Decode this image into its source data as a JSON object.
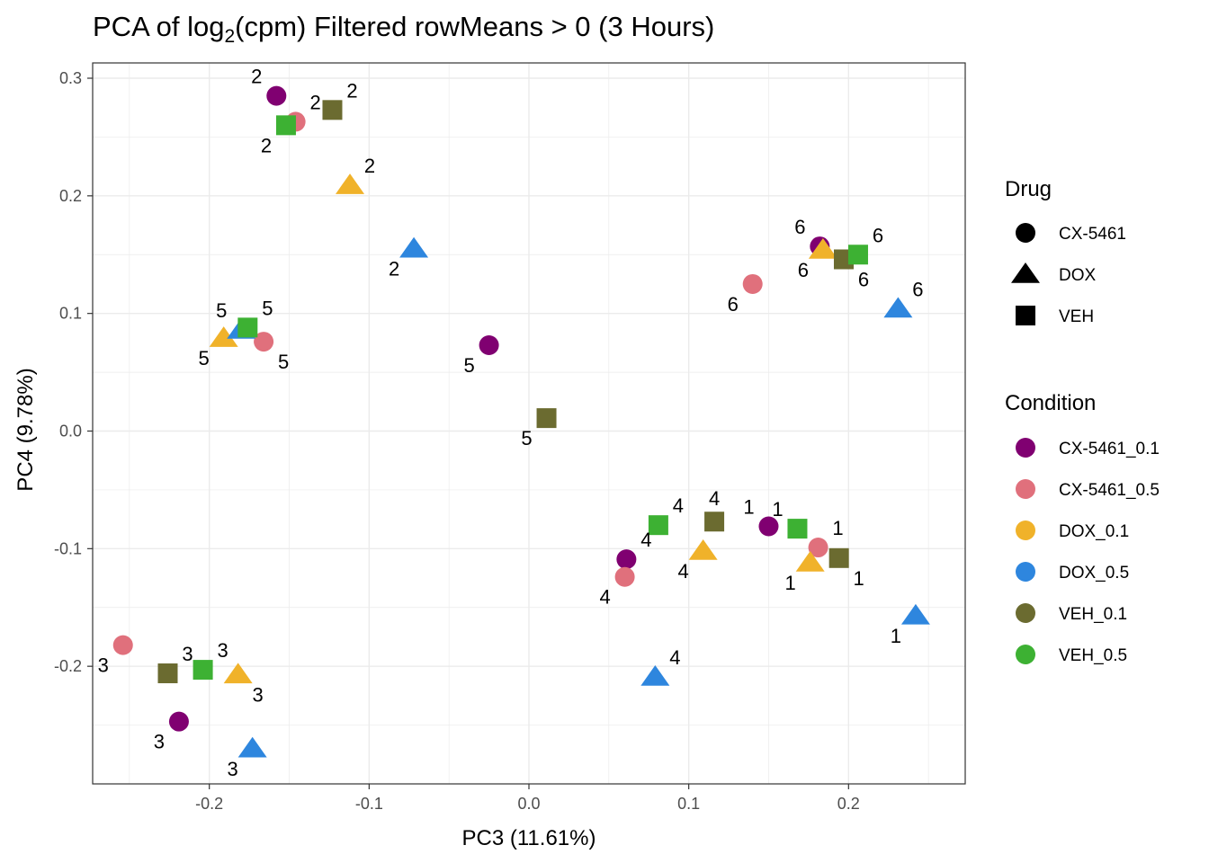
{
  "chart_data": {
    "type": "scatter",
    "title_prefix": "PCA of log",
    "title_sub": "2",
    "title_suffix": "(cpm) Filtered rowMeans > 0 (3 Hours)",
    "xlabel": "PC3 (11.61%)",
    "ylabel": "PC4 (9.78%)",
    "xlim": [
      -0.273,
      0.273
    ],
    "ylim": [
      -0.3,
      0.313
    ],
    "xticks": [
      -0.2,
      -0.1,
      0.0,
      0.1,
      0.2
    ],
    "xtick_labels": [
      "-0.2",
      "-0.1",
      "0.0",
      "0.1",
      "0.2"
    ],
    "yticks": [
      -0.2,
      -0.1,
      0.0,
      0.1,
      0.2,
      0.3
    ],
    "ytick_labels": [
      "-0.2",
      "-0.1",
      "0.0",
      "0.1",
      "0.2",
      "0.3"
    ],
    "grid": true,
    "colors": {
      "CX-5461_0.1": "#800071",
      "CX-5461_0.5": "#E0707C",
      "DOX_0.1": "#F0B22A",
      "DOX_0.5": "#2E86DE",
      "VEH_0.1": "#6B6B30",
      "VEH_0.5": "#3DB133"
    },
    "shapes": {
      "CX-5461": "circle",
      "DOX": "triangle",
      "VEH": "square"
    },
    "legend_drug": {
      "title": "Drug",
      "items": [
        "CX-5461",
        "DOX",
        "VEH"
      ]
    },
    "legend_condition": {
      "title": "Condition",
      "items": [
        "CX-5461_0.1",
        "CX-5461_0.5",
        "DOX_0.1",
        "DOX_0.5",
        "VEH_0.1",
        "VEH_0.5"
      ]
    },
    "points": [
      {
        "x": 0.15,
        "y": -0.081,
        "drug": "CX-5461",
        "condition": "CX-5461_0.1",
        "label": "1",
        "lpos": "tl"
      },
      {
        "x": 0.181,
        "y": -0.099,
        "drug": "CX-5461",
        "condition": "CX-5461_0.5",
        "label": "1",
        "lpos": "tr"
      },
      {
        "x": 0.176,
        "y": -0.112,
        "drug": "DOX",
        "condition": "DOX_0.1",
        "label": "1",
        "lpos": "bl"
      },
      {
        "x": 0.242,
        "y": -0.157,
        "drug": "DOX",
        "condition": "DOX_0.5",
        "label": "1",
        "lpos": "bl"
      },
      {
        "x": 0.194,
        "y": -0.108,
        "drug": "VEH",
        "condition": "VEH_0.1",
        "label": "1",
        "lpos": "br"
      },
      {
        "x": 0.168,
        "y": -0.083,
        "drug": "VEH",
        "condition": "VEH_0.5",
        "label": "1",
        "lpos": "tl"
      },
      {
        "x": -0.158,
        "y": 0.285,
        "drug": "CX-5461",
        "condition": "CX-5461_0.1",
        "label": "2",
        "lpos": "tl"
      },
      {
        "x": -0.146,
        "y": 0.263,
        "drug": "CX-5461",
        "condition": "CX-5461_0.5",
        "label": "2",
        "lpos": "tr"
      },
      {
        "x": -0.112,
        "y": 0.209,
        "drug": "DOX",
        "condition": "DOX_0.1",
        "label": "2",
        "lpos": "tr"
      },
      {
        "x": -0.072,
        "y": 0.155,
        "drug": "DOX",
        "condition": "DOX_0.5",
        "label": "2",
        "lpos": "bl"
      },
      {
        "x": -0.123,
        "y": 0.273,
        "drug": "VEH",
        "condition": "VEH_0.1",
        "label": "2",
        "lpos": "tr"
      },
      {
        "x": -0.152,
        "y": 0.26,
        "drug": "VEH",
        "condition": "VEH_0.5",
        "label": "2",
        "lpos": "bl"
      },
      {
        "x": -0.219,
        "y": -0.247,
        "drug": "CX-5461",
        "condition": "CX-5461_0.1",
        "label": "3",
        "lpos": "bl"
      },
      {
        "x": -0.254,
        "y": -0.182,
        "drug": "CX-5461",
        "condition": "CX-5461_0.5",
        "label": "3",
        "lpos": "bl"
      },
      {
        "x": -0.182,
        "y": -0.207,
        "drug": "DOX",
        "condition": "DOX_0.1",
        "label": "3",
        "lpos": "br"
      },
      {
        "x": -0.173,
        "y": -0.27,
        "drug": "DOX",
        "condition": "DOX_0.5",
        "label": "3",
        "lpos": "bl"
      },
      {
        "x": -0.226,
        "y": -0.206,
        "drug": "VEH",
        "condition": "VEH_0.1",
        "label": "3",
        "lpos": "tr"
      },
      {
        "x": -0.204,
        "y": -0.203,
        "drug": "VEH",
        "condition": "VEH_0.5",
        "label": "3",
        "lpos": "tr"
      },
      {
        "x": 0.061,
        "y": -0.109,
        "drug": "CX-5461",
        "condition": "CX-5461_0.1",
        "label": "4",
        "lpos": "tr"
      },
      {
        "x": 0.06,
        "y": -0.124,
        "drug": "CX-5461",
        "condition": "CX-5461_0.5",
        "label": "4",
        "lpos": "bl"
      },
      {
        "x": 0.109,
        "y": -0.102,
        "drug": "DOX",
        "condition": "DOX_0.1",
        "label": "4",
        "lpos": "bl"
      },
      {
        "x": 0.079,
        "y": -0.209,
        "drug": "DOX",
        "condition": "DOX_0.5",
        "label": "4",
        "lpos": "tr"
      },
      {
        "x": 0.116,
        "y": -0.077,
        "drug": "VEH",
        "condition": "VEH_0.1",
        "label": "4",
        "lpos": "t"
      },
      {
        "x": 0.081,
        "y": -0.08,
        "drug": "VEH",
        "condition": "VEH_0.5",
        "label": "4",
        "lpos": "tr"
      },
      {
        "x": -0.025,
        "y": 0.073,
        "drug": "CX-5461",
        "condition": "CX-5461_0.1",
        "label": "5",
        "lpos": "bl"
      },
      {
        "x": -0.166,
        "y": 0.076,
        "drug": "CX-5461",
        "condition": "CX-5461_0.5",
        "label": "5",
        "lpos": "br"
      },
      {
        "x": -0.191,
        "y": 0.079,
        "drug": "DOX",
        "condition": "DOX_0.1",
        "label": "5",
        "lpos": "bl"
      },
      {
        "x": -0.18,
        "y": 0.086,
        "drug": "DOX",
        "condition": "DOX_0.5",
        "label": "5",
        "lpos": "tl"
      },
      {
        "x": 0.011,
        "y": 0.011,
        "drug": "VEH",
        "condition": "VEH_0.1",
        "label": "5",
        "lpos": "bl"
      },
      {
        "x": -0.176,
        "y": 0.088,
        "drug": "VEH",
        "condition": "VEH_0.5",
        "label": "5",
        "lpos": "tr"
      },
      {
        "x": 0.182,
        "y": 0.157,
        "drug": "CX-5461",
        "condition": "CX-5461_0.1",
        "label": "6",
        "lpos": "tl"
      },
      {
        "x": 0.14,
        "y": 0.125,
        "drug": "CX-5461",
        "condition": "CX-5461_0.5",
        "label": "6",
        "lpos": "bl"
      },
      {
        "x": 0.184,
        "y": 0.154,
        "drug": "DOX",
        "condition": "DOX_0.1",
        "label": "6",
        "lpos": "bl"
      },
      {
        "x": 0.231,
        "y": 0.104,
        "drug": "DOX",
        "condition": "DOX_0.5",
        "label": "6",
        "lpos": "tr"
      },
      {
        "x": 0.197,
        "y": 0.146,
        "drug": "VEH",
        "condition": "VEH_0.1",
        "label": "6",
        "lpos": "br"
      },
      {
        "x": 0.206,
        "y": 0.15,
        "drug": "VEH",
        "condition": "VEH_0.5",
        "label": "6",
        "lpos": "tr"
      }
    ]
  }
}
